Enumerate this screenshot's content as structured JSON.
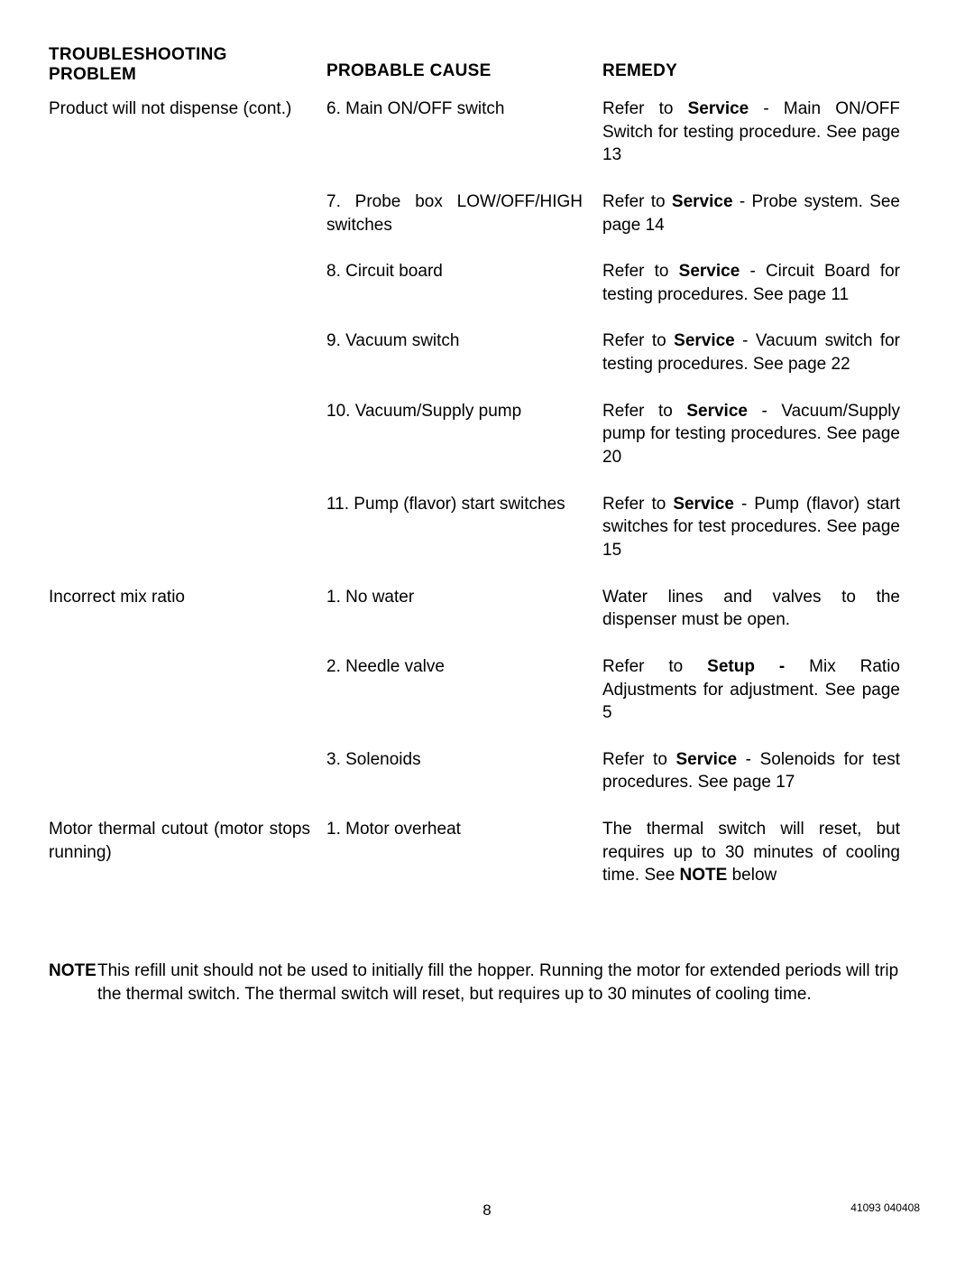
{
  "header": {
    "sectionTitle": "TROUBLESHOOTING",
    "col1": "PROBLEM",
    "col2": "PROBABLE CAUSE",
    "col3": "REMEDY"
  },
  "rows": [
    {
      "problem": "Product will not dispense (cont.)",
      "cause": "6. Main ON/OFF switch",
      "remedy": {
        "prefix": "Refer to ",
        "bold": "Service",
        "suffix": " - Main ON/OFF Switch for testing procedure. See page 13"
      }
    },
    {
      "problem": "",
      "cause": "7. Probe box LOW/OFF/HIGH switches",
      "remedy": {
        "prefix": "Refer to ",
        "bold": "Service",
        "suffix": " - Probe system. See page 14"
      }
    },
    {
      "problem": "",
      "cause": "8. Circuit board",
      "remedy": {
        "prefix": "Refer to ",
        "bold": "Service",
        "suffix": " - Circuit Board for testing procedures. See page 11"
      }
    },
    {
      "problem": "",
      "cause": "9. Vacuum switch",
      "remedy": {
        "prefix": "Refer to ",
        "bold": "Service",
        "suffix": " - Vacuum switch for testing procedures. See page 22"
      }
    },
    {
      "problem": "",
      "cause": "10. Vacuum/Supply pump",
      "remedy": {
        "prefix": "Refer to ",
        "bold": "Service",
        "suffix": " - Vacuum/Supply pump for testing procedures. See page 20"
      }
    },
    {
      "problem": "",
      "cause": "11. Pump (flavor) start switches",
      "remedy": {
        "prefix": "Refer to ",
        "bold": "Service",
        "suffix": " - Pump (flavor) start switches for test procedures. See page 15"
      }
    },
    {
      "problem": "Incorrect mix ratio",
      "cause": "1. No water",
      "remedy": {
        "prefix": "",
        "bold": "",
        "suffix": "Water lines and valves to the dispenser must be open."
      }
    },
    {
      "problem": "",
      "cause": "2. Needle valve",
      "remedy": {
        "prefix": "Refer to ",
        "bold": "Setup -",
        "suffix": " Mix Ratio Adjustments for adjustment. See page 5"
      }
    },
    {
      "problem": "",
      "cause": "3. Solenoids",
      "remedy": {
        "prefix": "Refer to ",
        "bold": "Service",
        "suffix": " - Solenoids for test procedures. See page 17"
      }
    },
    {
      "problem": "Motor thermal cutout (motor stops running)",
      "cause": "1. Motor overheat",
      "remedy": {
        "prefix": "The thermal switch will reset, but requires up to 30 minutes of cooling time. See ",
        "bold": "NOTE",
        "suffix": " below"
      }
    }
  ],
  "note": {
    "label": "NOTE",
    "text": "This refill unit should not be used to initially fill the hopper. Running the motor for extended periods will trip the thermal switch. The thermal switch will reset, but requires up to 30 minutes of cooling time."
  },
  "footer": {
    "pageNumber": "8",
    "docId": "41093 040408"
  }
}
